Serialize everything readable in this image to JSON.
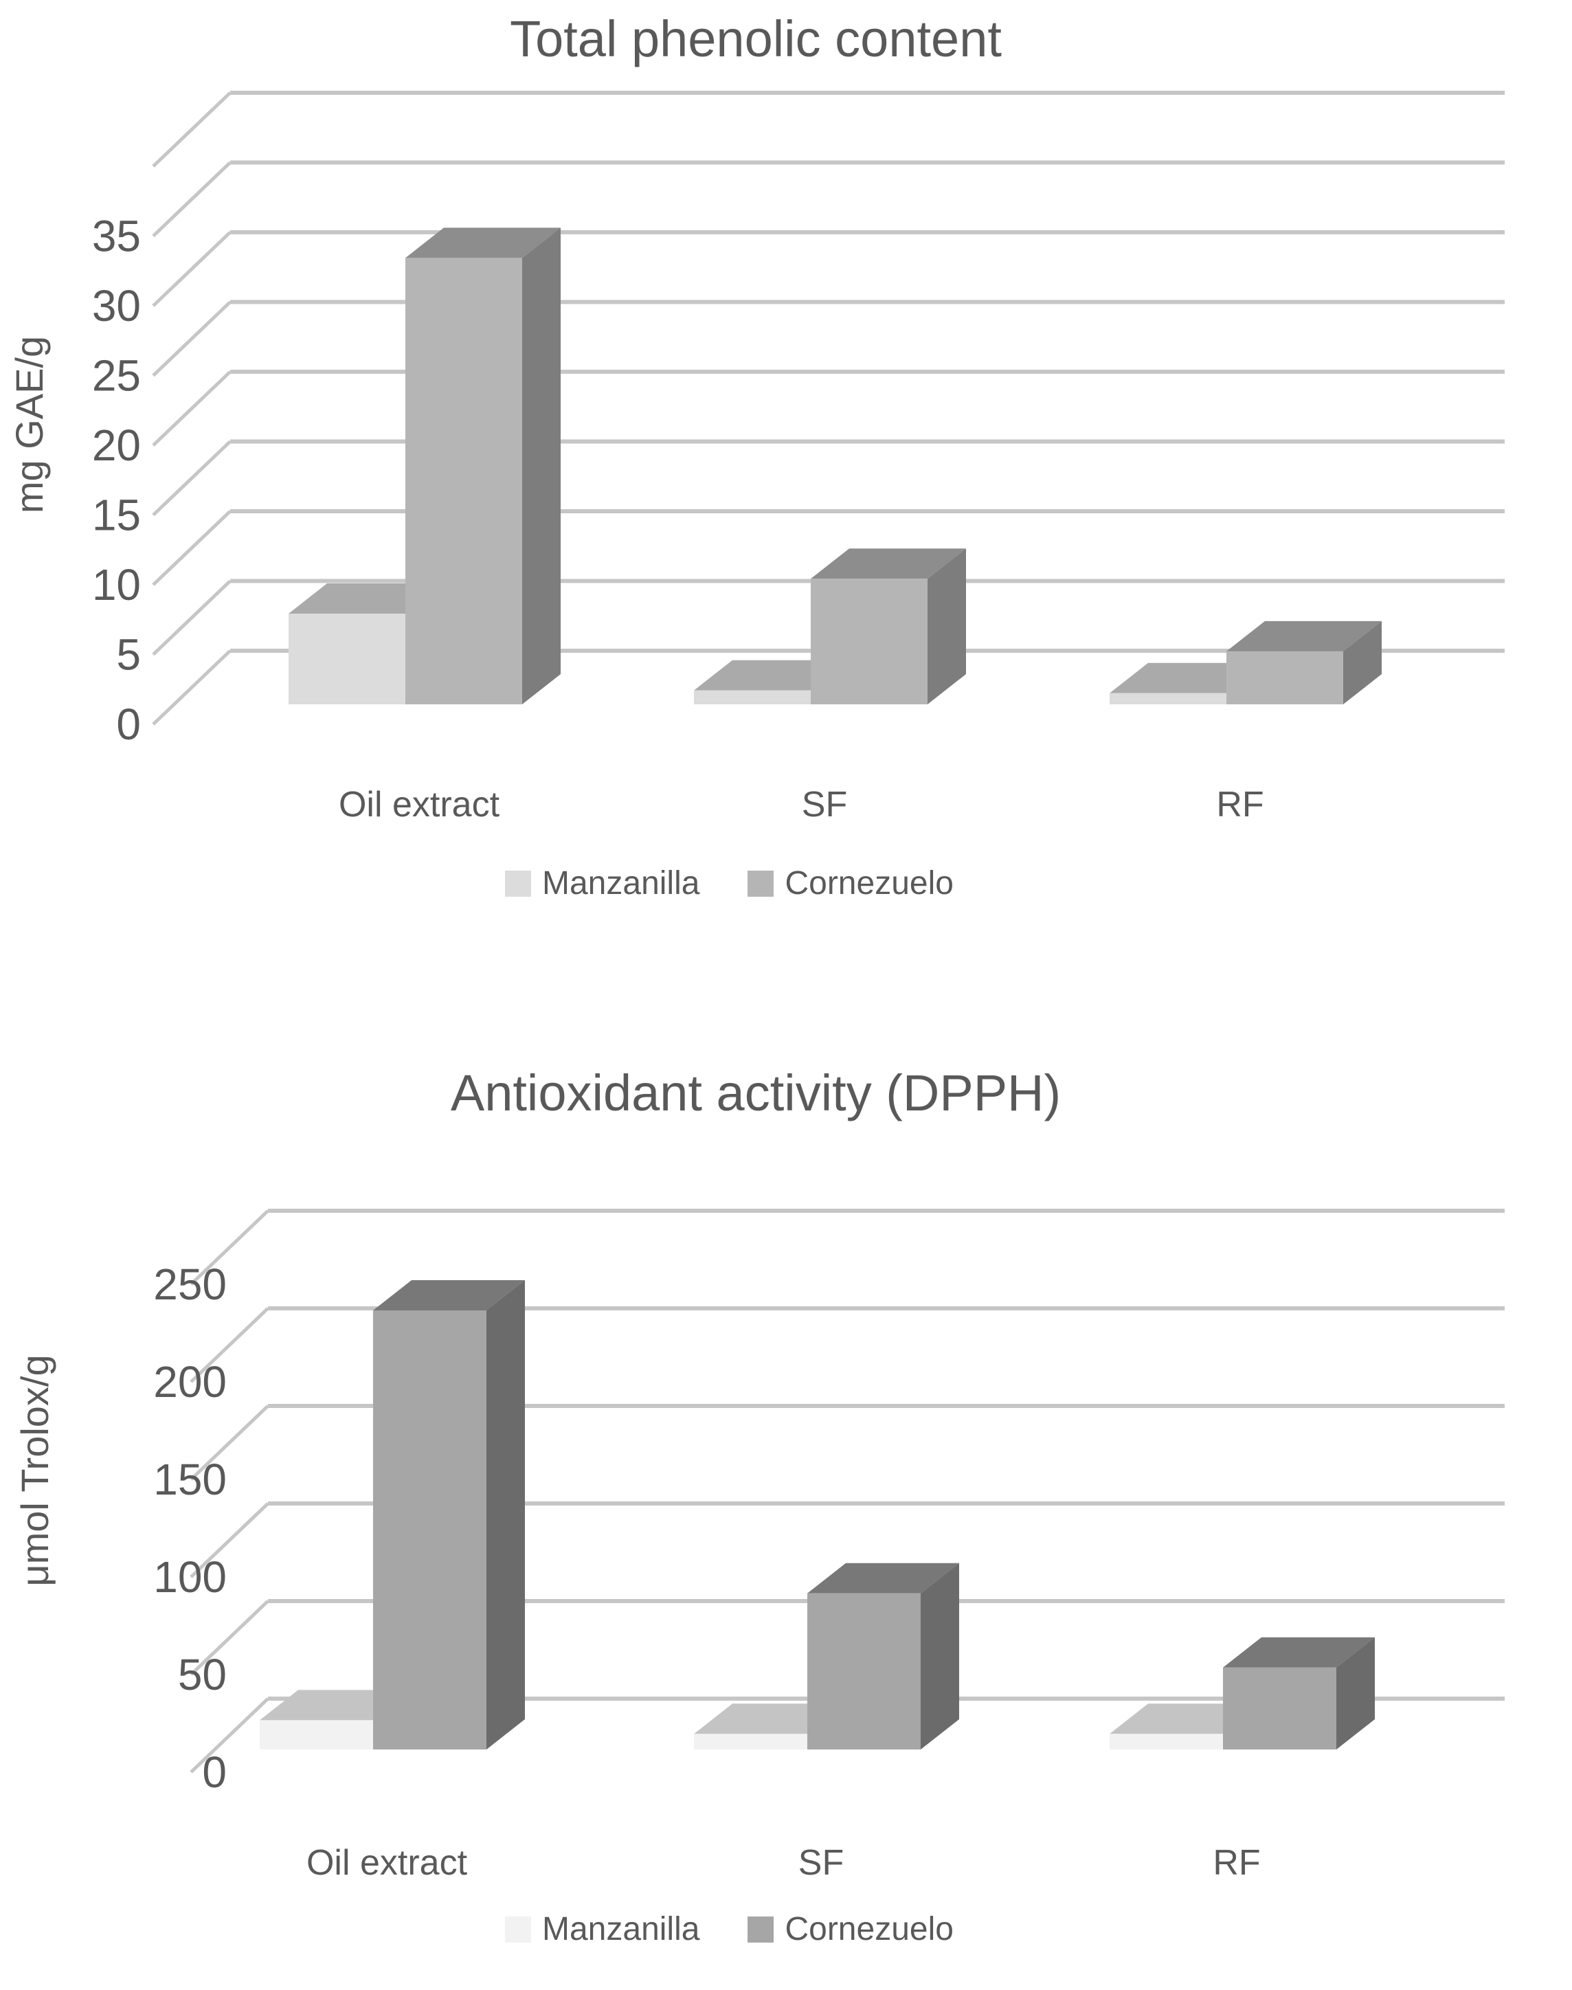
{
  "figure": {
    "background_color": "#ffffff",
    "text_color": "#595959",
    "gridline_color": "#c6c6c6"
  },
  "chart_data": [
    {
      "type": "bar",
      "style": "3d-clustered-column",
      "title": "Total phenolic content",
      "ylabel": "mg GAE/g",
      "xlabel": "",
      "categories": [
        "Oil extract",
        "SF",
        "RF"
      ],
      "series": [
        {
          "name": "Manzanilla",
          "values": [
            6.5,
            1,
            0.8
          ],
          "color_front": "#dcdcdc",
          "color_top": "#aaaaaa",
          "color_side": "#9b9b9b"
        },
        {
          "name": "Cornezuelo",
          "values": [
            32,
            9,
            3.8
          ],
          "color_front": "#b5b5b5",
          "color_top": "#8d8d8d",
          "color_side": "#7d7d7d"
        }
      ],
      "ylim": [
        0,
        40
      ],
      "yticks": [
        0,
        5,
        10,
        15,
        20,
        25,
        30,
        35
      ],
      "ytick_interval": 5,
      "grid": true,
      "legend_position": "bottom"
    },
    {
      "type": "bar",
      "style": "3d-clustered-column",
      "title": "Antioxidant activity (DPPH)",
      "ylabel": "μmol Trolox/g",
      "xlabel": "",
      "categories": [
        "Oil extract",
        "SF",
        "RF"
      ],
      "series": [
        {
          "name": "Manzanilla",
          "values": [
            15,
            8,
            8
          ],
          "color_front": "#f2f2f2",
          "color_top": "#c4c4c4",
          "color_side": "#b5b5b5"
        },
        {
          "name": "Cornezuelo",
          "values": [
            225,
            80,
            42
          ],
          "color_front": "#a6a6a6",
          "color_top": "#787878",
          "color_side": "#6b6b6b"
        }
      ],
      "ylim": [
        0,
        250
      ],
      "yticks": [
        0,
        50,
        100,
        150,
        200,
        250
      ],
      "ytick_interval": 50,
      "grid": true,
      "legend_position": "bottom"
    }
  ]
}
